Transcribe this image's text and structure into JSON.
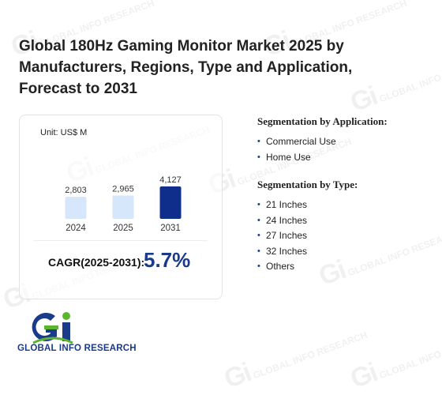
{
  "title": "Global 180Hz Gaming Monitor Market 2025 by Manufacturers, Regions, Type and Application, Forecast to 2031",
  "chart_data": {
    "type": "bar",
    "unit_label": "Unit: US$ M",
    "categories": [
      "2024",
      "2025",
      "2031"
    ],
    "values": [
      2803,
      2965,
      4127
    ],
    "value_labels": [
      "2,803",
      "2,965",
      "4,127"
    ],
    "bar_colors": [
      "#d6e6fb",
      "#d6e6fb",
      "#0f2d8a"
    ],
    "ylim": [
      0,
      4127
    ],
    "grid": false,
    "cagr_label": "CAGR(2025-2031):",
    "cagr_value": "5.7%"
  },
  "segmentation": {
    "application": {
      "title": "Segmentation by Application:",
      "items": [
        "Commercial Use",
        "Home Use"
      ]
    },
    "type": {
      "title": "Segmentation by Type:",
      "items": [
        "21 Inches",
        "24 Inches",
        "27 Inches",
        "32 Inches",
        "Others"
      ]
    }
  },
  "logo": {
    "text": "GLOBAL INFO RESEARCH"
  },
  "watermark": {
    "text": "GLOBAL INFO RESEARCH"
  },
  "colors": {
    "accent": "#1a3a8a",
    "logo_green": "#5bb62f",
    "bar_light": "#d6e6fb",
    "bar_dark": "#0f2d8a"
  }
}
